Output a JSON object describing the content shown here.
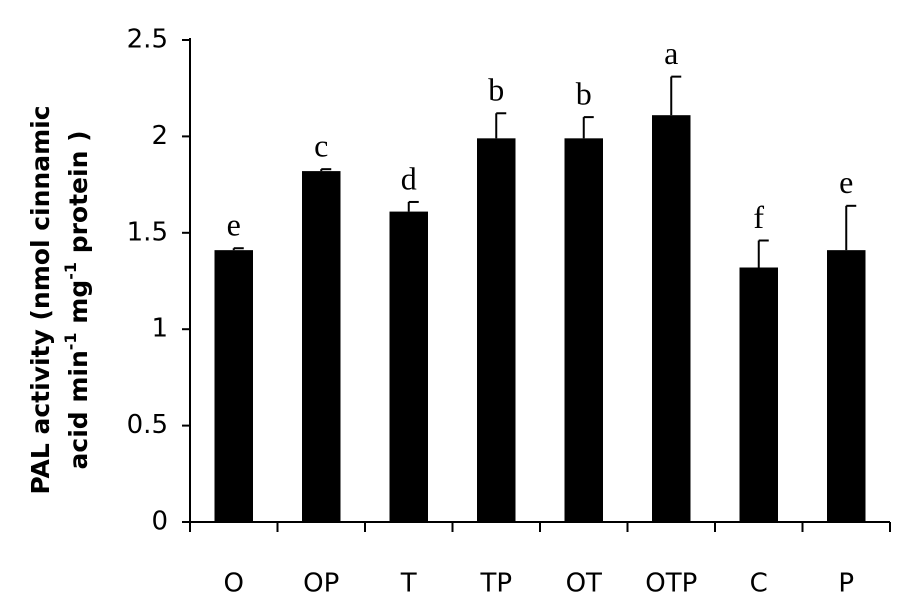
{
  "chart_data": {
    "type": "bar",
    "categories": [
      "O",
      "OP",
      "T",
      "TP",
      "OT",
      "OTP",
      "C",
      "P"
    ],
    "values": [
      1.41,
      1.82,
      1.61,
      1.99,
      1.99,
      2.11,
      1.32,
      1.41
    ],
    "errors": [
      0.01,
      0.01,
      0.05,
      0.13,
      0.11,
      0.2,
      0.14,
      0.23
    ],
    "letters": [
      "e",
      "c",
      "d",
      "b",
      "b",
      "a",
      "f",
      "e"
    ],
    "color": "#000000",
    "y_label": {
      "line1": "PAL activity (nmol cinnamic",
      "line2": [
        "acid min",
        "-1",
        " mg",
        "-1",
        " protein )"
      ]
    },
    "ylim": [
      0,
      2.5
    ],
    "yticks": [
      0,
      0.5,
      1,
      1.5,
      2,
      2.5
    ],
    "grid": false
  }
}
